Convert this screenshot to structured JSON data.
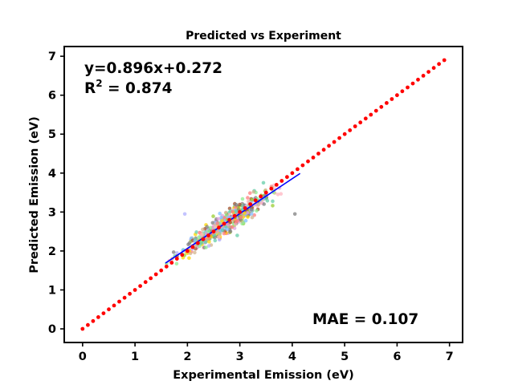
{
  "chart_data": {
    "type": "scatter",
    "title": "Predicted vs Experiment",
    "xlabel": "Experimental Emission (eV)",
    "ylabel": "Predicted Emission (eV)",
    "xlim": [
      -0.35,
      7.25
    ],
    "ylim": [
      -0.35,
      7.25
    ],
    "xticks": [
      0,
      1,
      2,
      3,
      4,
      5,
      6,
      7
    ],
    "yticks": [
      0,
      1,
      2,
      3,
      4,
      5,
      6,
      7
    ],
    "grid": false,
    "legend": "none",
    "annotations": {
      "equation": "y=0.896x+0.272",
      "r2_prefix": "R",
      "r2_sup": "2",
      "r2_value": " = 0.874",
      "mae": "MAE = 0.107"
    },
    "series": [
      {
        "kind": "identity-line",
        "color": "#ff0000",
        "x_start": 0.0,
        "x_end": 6.9,
        "step": 0.1
      },
      {
        "kind": "fit-line",
        "color": "#0000ff",
        "slope": 0.896,
        "intercept": 0.272,
        "x_start": 1.58,
        "x_end": 4.15
      },
      {
        "kind": "scatter-cloud",
        "colors": [
          "#808080",
          "#90ee90",
          "#d2b48c",
          "#ff7f7f",
          "#b0b0ff",
          "#9acd32",
          "#a0522d",
          "#ffb6c1",
          "#66cdaa",
          "#dda0dd",
          "#ffd700",
          "#7fbfff"
        ],
        "count": 520,
        "x_range": [
          1.55,
          4.25
        ],
        "approx_center_line": {
          "slope": 0.896,
          "intercept": 0.272
        },
        "outliers": [
          {
            "x": 4.05,
            "y": 2.95
          },
          {
            "x": 1.95,
            "y": 2.95
          },
          {
            "x": 3.45,
            "y": 3.75
          },
          {
            "x": 2.95,
            "y": 2.4
          }
        ]
      }
    ]
  }
}
